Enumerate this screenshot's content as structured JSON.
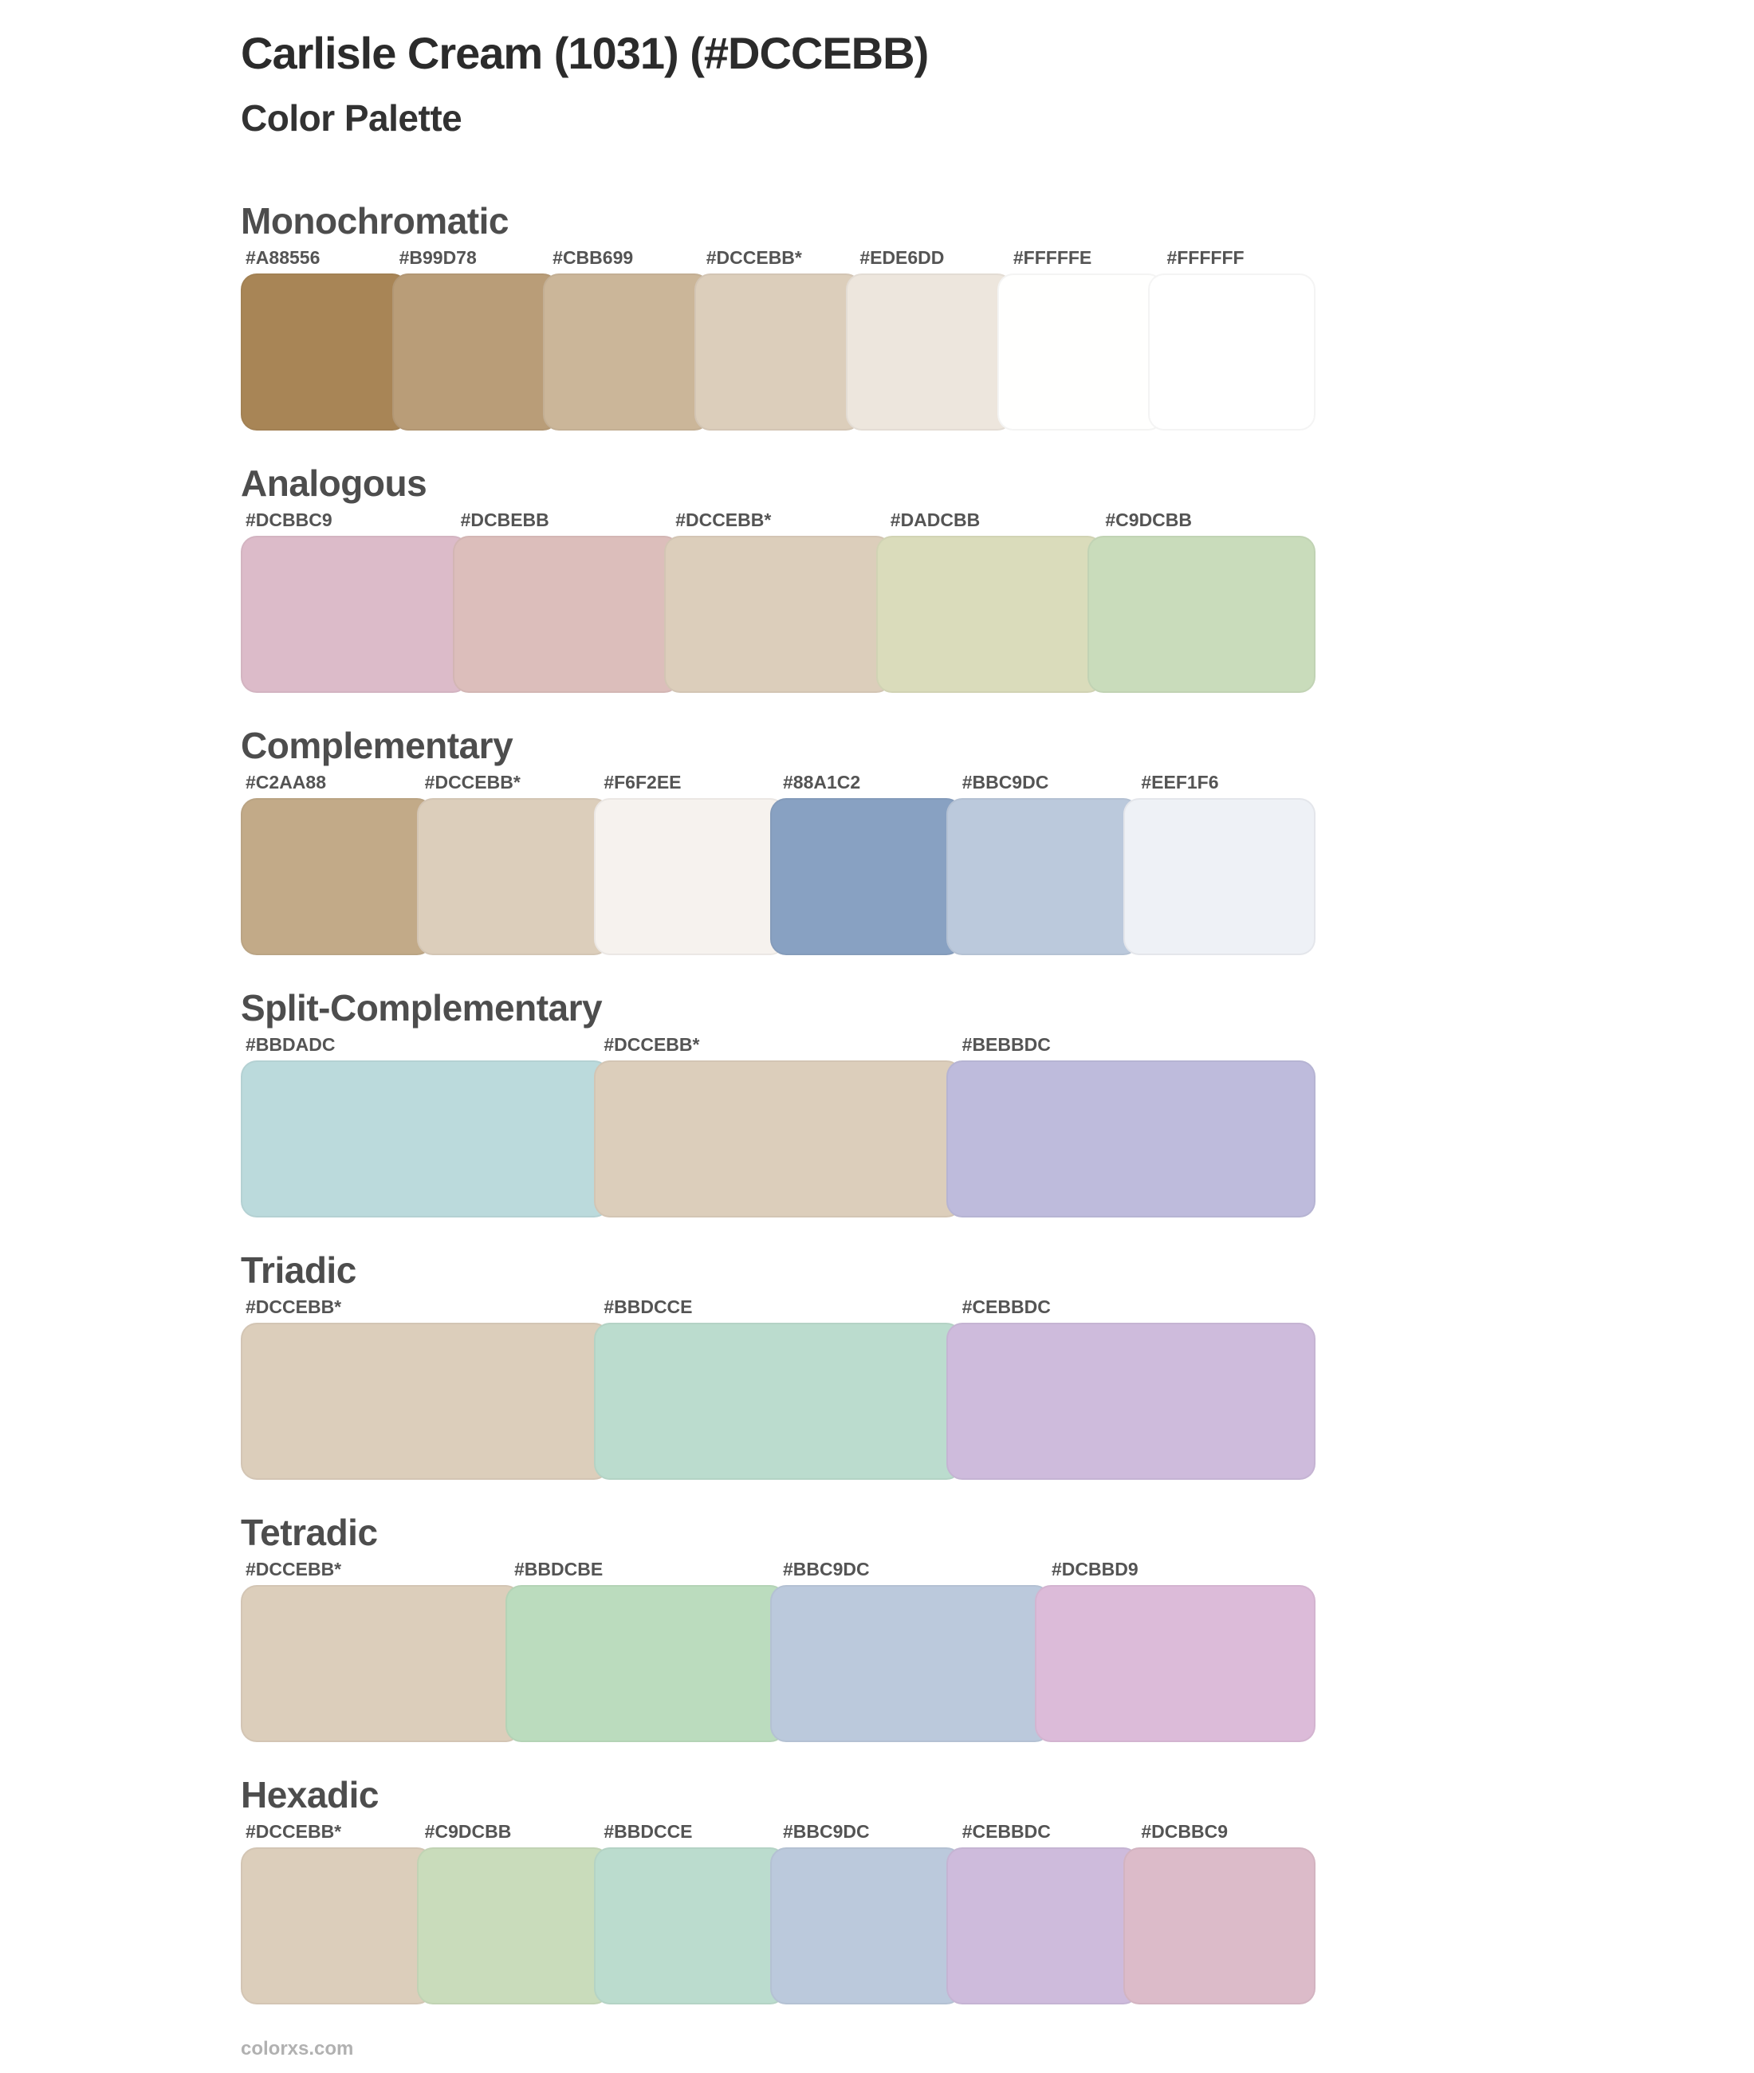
{
  "page": {
    "title": "Carlisle Cream (1031) (#DCCEBB)",
    "subtitle": "Color Palette",
    "base_color": "#DCCEBB",
    "footer": "colorxs.com"
  },
  "palettes": [
    {
      "name": "Monochromatic",
      "swatches": [
        {
          "label": "#A88556",
          "color": "#A88556"
        },
        {
          "label": "#B99D78",
          "color": "#B99D78"
        },
        {
          "label": "#CBB699",
          "color": "#CBB699"
        },
        {
          "label": "#DCCEBB*",
          "color": "#DCCEBB"
        },
        {
          "label": "#EDE6DD",
          "color": "#EDE6DD"
        },
        {
          "label": "#FFFFFE",
          "color": "#FFFFFE"
        },
        {
          "label": "#FFFFFF",
          "color": "#FFFFFF"
        }
      ]
    },
    {
      "name": "Analogous",
      "swatches": [
        {
          "label": "#DCBBC9",
          "color": "#DCBBC9"
        },
        {
          "label": "#DCBEBB",
          "color": "#DCBEBB"
        },
        {
          "label": "#DCCEBB*",
          "color": "#DCCEBB"
        },
        {
          "label": "#DADCBB",
          "color": "#DADCBB"
        },
        {
          "label": "#C9DCBB",
          "color": "#C9DCBB"
        }
      ]
    },
    {
      "name": "Complementary",
      "swatches": [
        {
          "label": "#C2AA88",
          "color": "#C2AA88"
        },
        {
          "label": "#DCCEBB*",
          "color": "#DCCEBB"
        },
        {
          "label": "#F6F2EE",
          "color": "#F6F2EE"
        },
        {
          "label": "#88A1C2",
          "color": "#88A1C2"
        },
        {
          "label": "#BBC9DC",
          "color": "#BBC9DC"
        },
        {
          "label": "#EEF1F6",
          "color": "#EEF1F6"
        }
      ]
    },
    {
      "name": "Split-Complementary",
      "swatches": [
        {
          "label": "#BBDADC",
          "color": "#BBDADC"
        },
        {
          "label": "#DCCEBB*",
          "color": "#DCCEBB"
        },
        {
          "label": "#BEBBDC",
          "color": "#BEBBDC"
        }
      ]
    },
    {
      "name": "Triadic",
      "swatches": [
        {
          "label": "#DCCEBB*",
          "color": "#DCCEBB"
        },
        {
          "label": "#BBDCCE",
          "color": "#BBDCCE"
        },
        {
          "label": "#CEBBDC",
          "color": "#CEBBDC"
        }
      ]
    },
    {
      "name": "Tetradic",
      "swatches": [
        {
          "label": "#DCCEBB*",
          "color": "#DCCEBB"
        },
        {
          "label": "#BBDCBE",
          "color": "#BBDCBE"
        },
        {
          "label": "#BBC9DC",
          "color": "#BBC9DC"
        },
        {
          "label": "#DCBBD9",
          "color": "#DCBBD9"
        }
      ]
    },
    {
      "name": "Hexadic",
      "swatches": [
        {
          "label": "#DCCEBB*",
          "color": "#DCCEBB"
        },
        {
          "label": "#C9DCBB",
          "color": "#C9DCBB"
        },
        {
          "label": "#BBDCCE",
          "color": "#BBDCCE"
        },
        {
          "label": "#BBC9DC",
          "color": "#BBC9DC"
        },
        {
          "label": "#CEBBDC",
          "color": "#CEBBDC"
        },
        {
          "label": "#DCBBC9",
          "color": "#DCBBC9"
        }
      ]
    }
  ]
}
